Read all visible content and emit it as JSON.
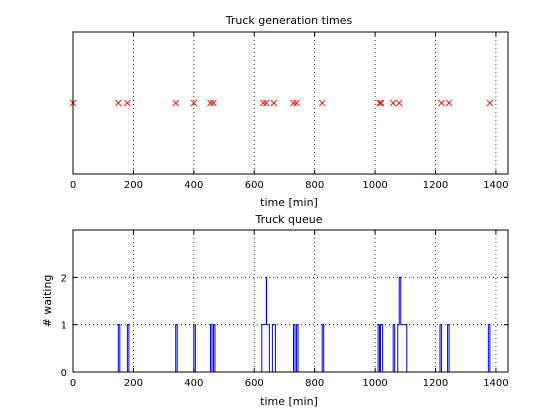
{
  "chart_data": [
    {
      "type": "scatter",
      "title": "Truck generation times",
      "xlabel": "time [min]",
      "ylabel": "",
      "xlim": [
        0,
        1440
      ],
      "xticks": [
        0,
        200,
        400,
        600,
        800,
        1000,
        1200,
        1400
      ],
      "yticks": [],
      "grid": true,
      "marker": "x",
      "color": "#e0201a",
      "series": [
        {
          "values": [
            0,
            150,
            180,
            340,
            400,
            455,
            465,
            630,
            640,
            665,
            730,
            740,
            825,
            1015,
            1020,
            1060,
            1080,
            1220,
            1245,
            1380
          ]
        }
      ]
    },
    {
      "type": "line",
      "step": true,
      "title": "Truck queue",
      "xlabel": "time [min]",
      "ylabel": "# waiting",
      "xlim": [
        0,
        1440
      ],
      "ylim": [
        0,
        3
      ],
      "xticks": [
        0,
        200,
        400,
        600,
        800,
        1000,
        1200,
        1400
      ],
      "yticks": [
        0,
        1,
        2
      ],
      "grid": true,
      "color": "#0000ee",
      "series": [
        {
          "x": [
            0,
            150,
            155,
            180,
            185,
            340,
            345,
            400,
            405,
            455,
            460,
            465,
            470,
            625,
            640,
            641,
            645,
            650,
            660,
            665,
            670,
            730,
            735,
            740,
            745,
            825,
            830,
            1010,
            1015,
            1018,
            1020,
            1025,
            1060,
            1065,
            1075,
            1080,
            1085,
            1095,
            1105,
            1110,
            1215,
            1220,
            1240,
            1245,
            1375,
            1380,
            1440
          ],
          "values": [
            0,
            1,
            0,
            1,
            0,
            1,
            0,
            1,
            0,
            1,
            0,
            1,
            0,
            1,
            2,
            1,
            1,
            0,
            1,
            1,
            0,
            1,
            0,
            1,
            0,
            1,
            0,
            1,
            0,
            1,
            1,
            0,
            1,
            0,
            1,
            2,
            1,
            1,
            0,
            0,
            1,
            0,
            1,
            0,
            1,
            0,
            0
          ]
        }
      ]
    }
  ]
}
